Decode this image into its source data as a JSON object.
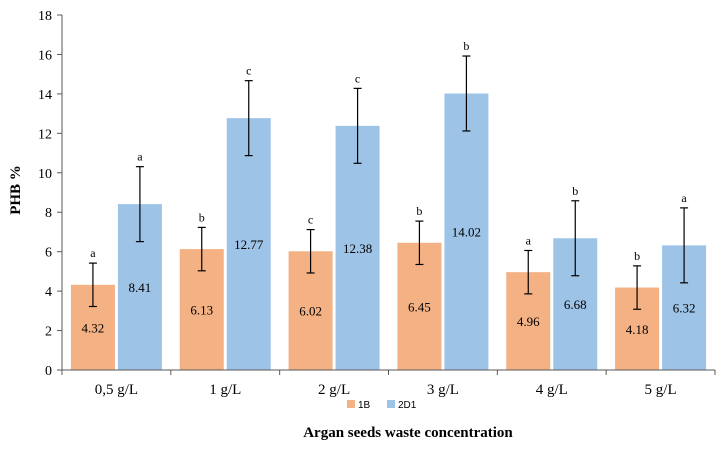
{
  "chart_data": {
    "type": "bar",
    "title": "",
    "xlabel": "Argan seeds waste  concentration",
    "ylabel": "PHB %",
    "ylim": [
      0,
      18
    ],
    "yticks": [
      0,
      2,
      4,
      6,
      8,
      10,
      12,
      14,
      16,
      18
    ],
    "grid": false,
    "legend_position": "bottom",
    "categories": [
      "0,5 g/L",
      "1 g/L",
      "2 g/L",
      "3 g/L",
      "4  g/L",
      "5 g/L"
    ],
    "series": [
      {
        "name": "1B",
        "color": "#F4B183",
        "values": [
          4.32,
          6.13,
          6.02,
          6.45,
          4.96,
          4.18
        ],
        "labels": [
          "4.32",
          "6.13",
          "6.02",
          "6.45",
          "4.96",
          "4.18"
        ],
        "errors": [
          1.1,
          1.1,
          1.1,
          1.1,
          1.1,
          1.1
        ],
        "significance": [
          "a",
          "b",
          "c",
          "b",
          "a",
          "b"
        ]
      },
      {
        "name": "2D1",
        "color": "#9DC3E6",
        "values": [
          8.41,
          12.77,
          12.38,
          14.02,
          6.68,
          6.32
        ],
        "labels": [
          "8.41",
          "12.77",
          "12.38",
          "14.02",
          "6.68",
          "6.32"
        ],
        "errors": [
          1.9,
          1.9,
          1.9,
          1.9,
          1.9,
          1.9
        ],
        "significance": [
          "a",
          "c",
          "c",
          "b",
          "b",
          "a"
        ]
      }
    ]
  }
}
